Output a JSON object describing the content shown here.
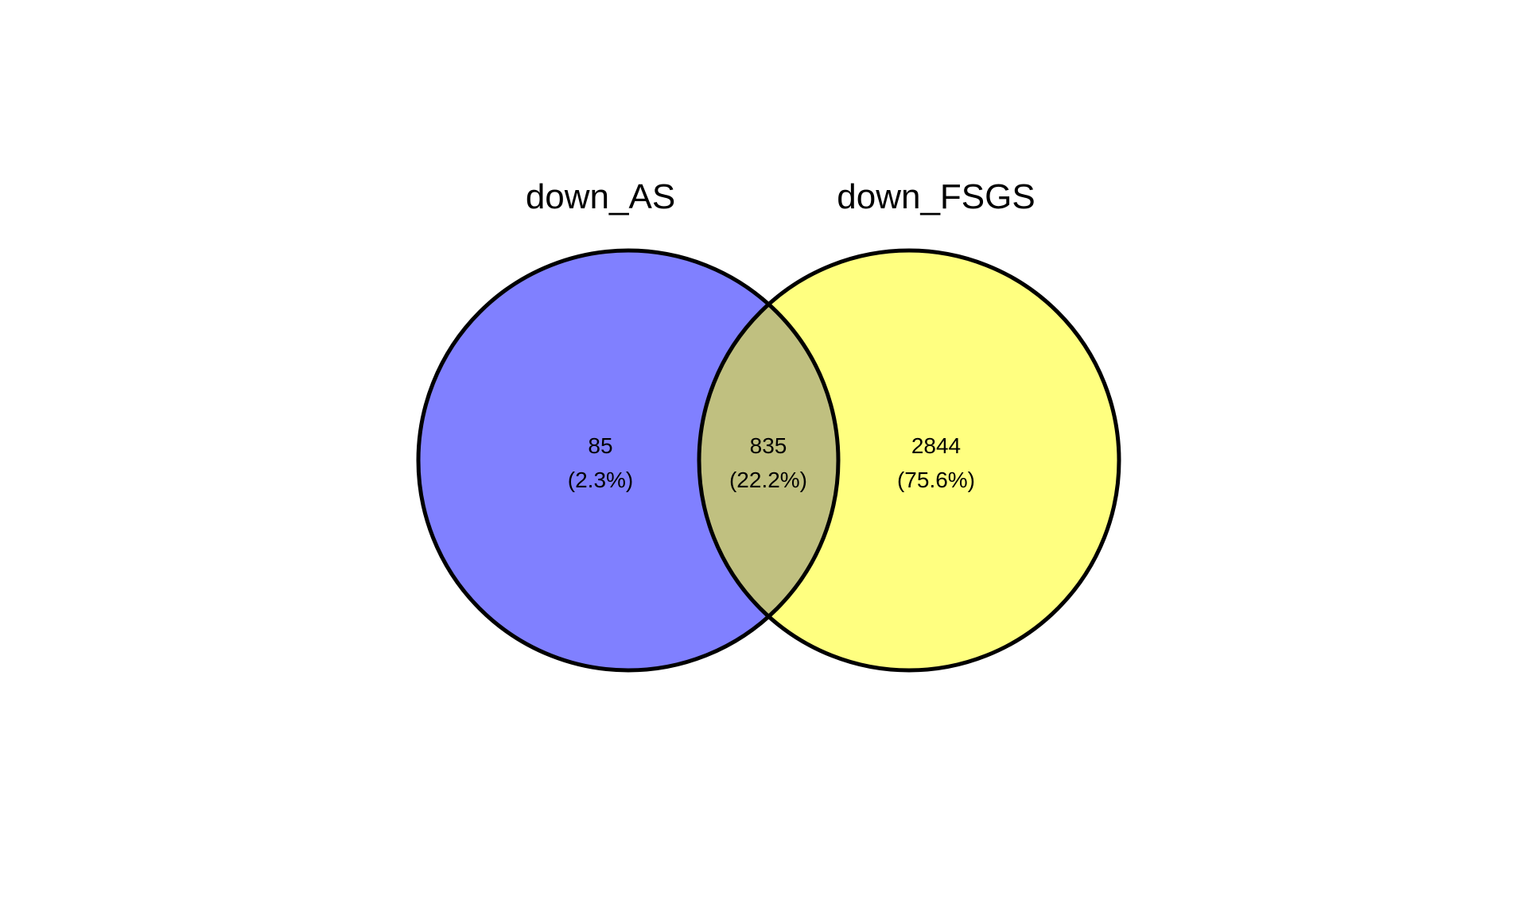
{
  "sets": [
    {
      "name": "down_AS",
      "color": "#8080ff"
    },
    {
      "name": "down_FSGS",
      "color": "#ffff80"
    }
  ],
  "overlap_color": "#c0c080",
  "outline_color": "#000000",
  "regions": [
    {
      "id": "only_down_AS",
      "count": "85",
      "percent": "(2.3%)"
    },
    {
      "id": "down_AS_and_down_FSGS",
      "count": "835",
      "percent": "(22.2%)"
    },
    {
      "id": "only_down_FSGS",
      "count": "2844",
      "percent": "(75.6%)"
    }
  ]
}
